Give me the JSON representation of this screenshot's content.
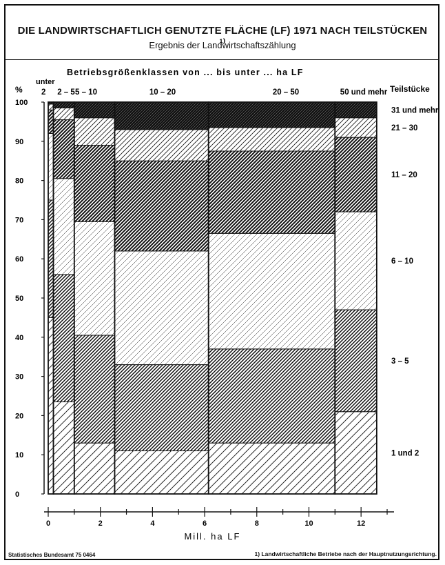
{
  "title": "DIE LANDWIRTSCHAFTLICH GENUTZTE FLÄCHE (LF) 1971 NACH TEILSTÜCKEN ¹⁾",
  "subtitle": "Ergebnis der Landwirtschaftszählung",
  "source": "Statistisches Bundesamt 75 0464",
  "footnote": "1) Landwirtschaftliche Betriebe nach der Hauptnutzungsrichtung.",
  "chart_data": {
    "type": "bar",
    "subtype": "marimekko (variable-width 100% stacked bars)",
    "xlabel": "Mill. ha LF",
    "ylabel": "%",
    "group_axis_label": "Betriebsgrößenklassen von ... bis unter ... ha LF",
    "stack_axis_label": "Teilstücke",
    "xlim": [
      0,
      13
    ],
    "ylim": [
      0,
      100
    ],
    "x_ticks": [
      0,
      2,
      4,
      6,
      8,
      10,
      12
    ],
    "y_ticks": [
      0,
      10,
      20,
      30,
      40,
      50,
      60,
      70,
      80,
      90,
      100
    ],
    "group_labels": [
      {
        "line1": "unter",
        "line2": "2"
      },
      {
        "line1": "",
        "line2": "2 – 5"
      },
      {
        "line1": "",
        "line2": "5 – 10"
      },
      {
        "line1": "",
        "line2": "10 – 20"
      },
      {
        "line1": "",
        "line2": "20 – 50"
      },
      {
        "line1": "",
        "line2": "50 und mehr"
      }
    ],
    "x_boundaries": [
      0,
      0.2,
      1.0,
      2.55,
      6.15,
      11.0,
      12.6
    ],
    "series_names": [
      "1 und 2",
      "3 – 5",
      "6 – 10",
      "11 – 20",
      "21 – 30",
      "31 und mehr"
    ],
    "cumulative_upper": [
      [
        45,
        75,
        92,
        98,
        99.5,
        100
      ],
      [
        23.5,
        56,
        80.5,
        95.5,
        98.5,
        100
      ],
      [
        13,
        40.5,
        69.5,
        89,
        96,
        100
      ],
      [
        11,
        33,
        62,
        85,
        93,
        100
      ],
      [
        13,
        37,
        66.5,
        87.5,
        93.5,
        100
      ],
      [
        21,
        47,
        72,
        91,
        96,
        100
      ]
    ]
  }
}
